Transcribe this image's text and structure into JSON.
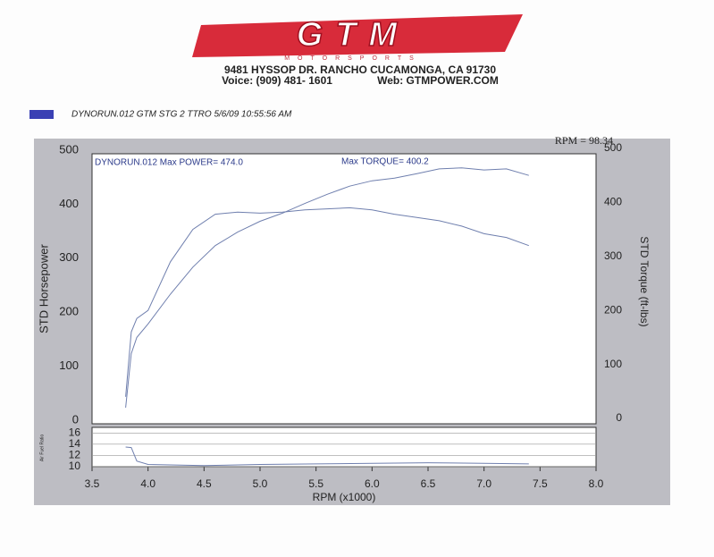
{
  "header": {
    "logo": "GTM",
    "logo_sub": "MOTORSPORTS",
    "address": "9481 HYSSOP DR. RANCHO CUCAMONGA, CA 91730",
    "voice": "Voice: (909) 481- 1601",
    "web": "Web: GTMPOWER.COM",
    "readout": "RPM = 98.34"
  },
  "chart_data": [
    {
      "type": "line",
      "legend": {
        "label": "DYNORUN.012   GTM STG 2 TTRO  5/6/09 10:55:56 AM",
        "color": "#3a40b4"
      },
      "annotations": [
        "DYNORUN.012  Max POWER= 474.0",
        "Max TORQUE= 400.2"
      ],
      "x_label": "RPM (x1000)",
      "y_label": "STD Horsepower",
      "y2_label": "STD Torque (ft-lbs)",
      "x": [
        3.8,
        3.85,
        3.9,
        4.0,
        4.2,
        4.4,
        4.6,
        4.8,
        5.0,
        5.2,
        5.4,
        5.6,
        5.8,
        6.0,
        6.2,
        6.4,
        6.6,
        6.8,
        7.0,
        7.2,
        7.4
      ],
      "series": [
        {
          "color": "#6f7fae",
          "values": [
            30,
            130,
            160,
            185,
            240,
            290,
            330,
            355,
            375,
            390,
            408,
            425,
            440,
            450,
            455,
            463,
            472,
            474,
            470,
            472,
            460
          ]
        },
        {
          "color": "#6f7fae",
          "axis": "y2",
          "values": [
            50,
            170,
            195,
            210,
            300,
            360,
            388,
            392,
            390,
            392,
            396,
            398,
            400,
            396,
            388,
            382,
            376,
            366,
            352,
            345,
            330
          ]
        }
      ],
      "xlim": [
        3.5,
        8.0
      ],
      "xticks": [
        3.5,
        {
          "value": 4,
          "label": "4.0"
        },
        4.5,
        {
          "value": 5,
          "label": "5.0"
        },
        5.5,
        {
          "value": 6,
          "label": "6.0"
        },
        6.5,
        {
          "value": 7,
          "label": "7.0"
        },
        7.5,
        {
          "value": 8,
          "label": "8.0"
        }
      ],
      "ylim": [
        0,
        500
      ],
      "yticks": [
        0,
        100,
        200,
        300,
        400,
        500
      ],
      "y2lim": [
        0,
        500
      ],
      "y2ticks": [
        0,
        100,
        200,
        300,
        400,
        500
      ],
      "grid": false
    },
    {
      "type": "line",
      "y_label": "Air Fuel Ratio",
      "x": [
        3.8,
        3.85,
        3.9,
        4.0,
        4.5,
        5.0,
        5.5,
        6.0,
        6.5,
        7.0,
        7.4
      ],
      "series": [
        {
          "color": "#6f7fae",
          "values": [
            13.5,
            13.4,
            11,
            10.4,
            10.2,
            10.4,
            10.5,
            10.6,
            10.7,
            10.6,
            10.5
          ]
        }
      ],
      "xlim": [
        3.5,
        8.0
      ],
      "ylim": [
        10,
        17
      ],
      "yticks": [
        10,
        12,
        14,
        16
      ],
      "grid": true
    }
  ]
}
